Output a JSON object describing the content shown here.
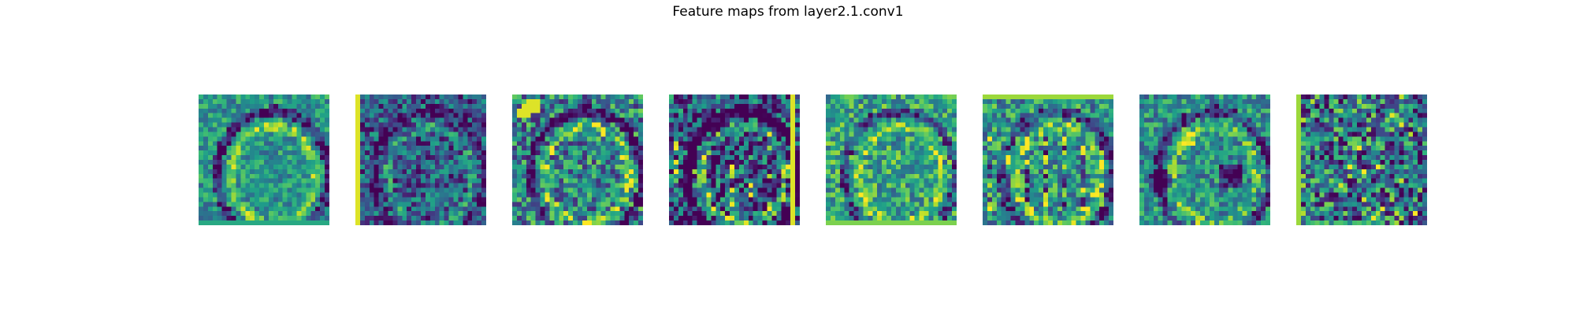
{
  "figure": {
    "title": "Feature maps from layer2.1.conv1"
  },
  "chart_data": {
    "type": "heatmap",
    "title": "Feature maps from layer2.1.conv1",
    "colormap": "viridis",
    "axes_visible": false,
    "grid_size": 28,
    "panel_count": 8,
    "panels": [
      {
        "index": 1,
        "style": "mid-teal, faint arcs, dark diagonal strokes"
      },
      {
        "index": 2,
        "style": "dark blue with green speckles, bright left edge"
      },
      {
        "index": 3,
        "style": "blue-green with bright yellow-green blobs"
      },
      {
        "index": 4,
        "style": "dark, vertical stripes, bright right edge"
      },
      {
        "index": 5,
        "style": "green-dominant, bright speckles"
      },
      {
        "index": 6,
        "style": "green with dark vertical streaks, bright top"
      },
      {
        "index": 7,
        "style": "teal-green, large dark blobs lower right"
      },
      {
        "index": 8,
        "style": "fine dotted noise, teal"
      }
    ],
    "colors": {
      "viridis_stops": [
        "#440154",
        "#482878",
        "#3e4989",
        "#31688e",
        "#26828e",
        "#1f9e89",
        "#35b779",
        "#6ece58",
        "#b5de2b",
        "#fde725"
      ]
    }
  }
}
